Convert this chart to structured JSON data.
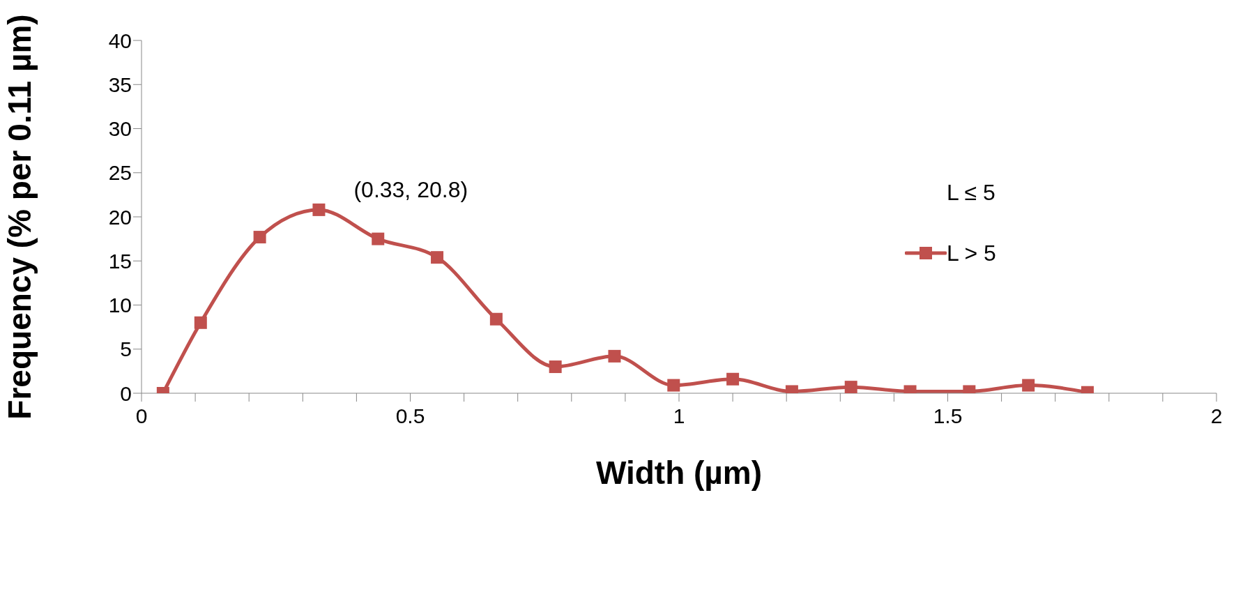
{
  "chart_data": {
    "type": "line",
    "xlabel": "Width (µm)",
    "ylabel": "Frequency (% per 0.11 µm)",
    "x": [
      0.04,
      0.11,
      0.22,
      0.33,
      0.44,
      0.55,
      0.66,
      0.77,
      0.88,
      0.99,
      1.1,
      1.21,
      1.32,
      1.43,
      1.54,
      1.65,
      1.76
    ],
    "series": [
      {
        "name": "L > 5",
        "color": "#c0504d",
        "values": [
          0,
          8.0,
          17.7,
          20.8,
          17.5,
          15.4,
          8.4,
          3.0,
          4.2,
          0.9,
          1.6,
          0.2,
          0.7,
          0.2,
          0.2,
          0.9,
          0.1
        ]
      }
    ],
    "xlim": [
      0,
      2
    ],
    "xticks": [
      0,
      {
        "value": 0.1,
        "label": null
      },
      {
        "value": 0.2,
        "label": null
      },
      {
        "value": 0.3,
        "label": null
      },
      {
        "value": 0.4,
        "label": null
      },
      0.5,
      {
        "value": 0.6,
        "label": null
      },
      {
        "value": 0.7,
        "label": null
      },
      {
        "value": 0.8,
        "label": null
      },
      {
        "value": 0.9,
        "label": null
      },
      1,
      {
        "value": 1.1,
        "label": null
      },
      {
        "value": 1.2,
        "label": null
      },
      {
        "value": 1.3,
        "label": null
      },
      {
        "value": 1.4,
        "label": null
      },
      1.5,
      {
        "value": 1.6,
        "label": null
      },
      {
        "value": 1.7,
        "label": null
      },
      {
        "value": 1.8,
        "label": null
      },
      {
        "value": 1.9,
        "label": null
      },
      2
    ],
    "ylim": [
      0,
      40
    ],
    "yticks": [
      0,
      5,
      10,
      15,
      20,
      25,
      30,
      35,
      40
    ],
    "grid": false,
    "legend": "right",
    "marker": "square",
    "line_style": "solid",
    "annotations": [
      {
        "text": "(0.33, 20.8)",
        "x": 0.33,
        "y": 20.8
      },
      "L ≤ 5"
    ]
  }
}
